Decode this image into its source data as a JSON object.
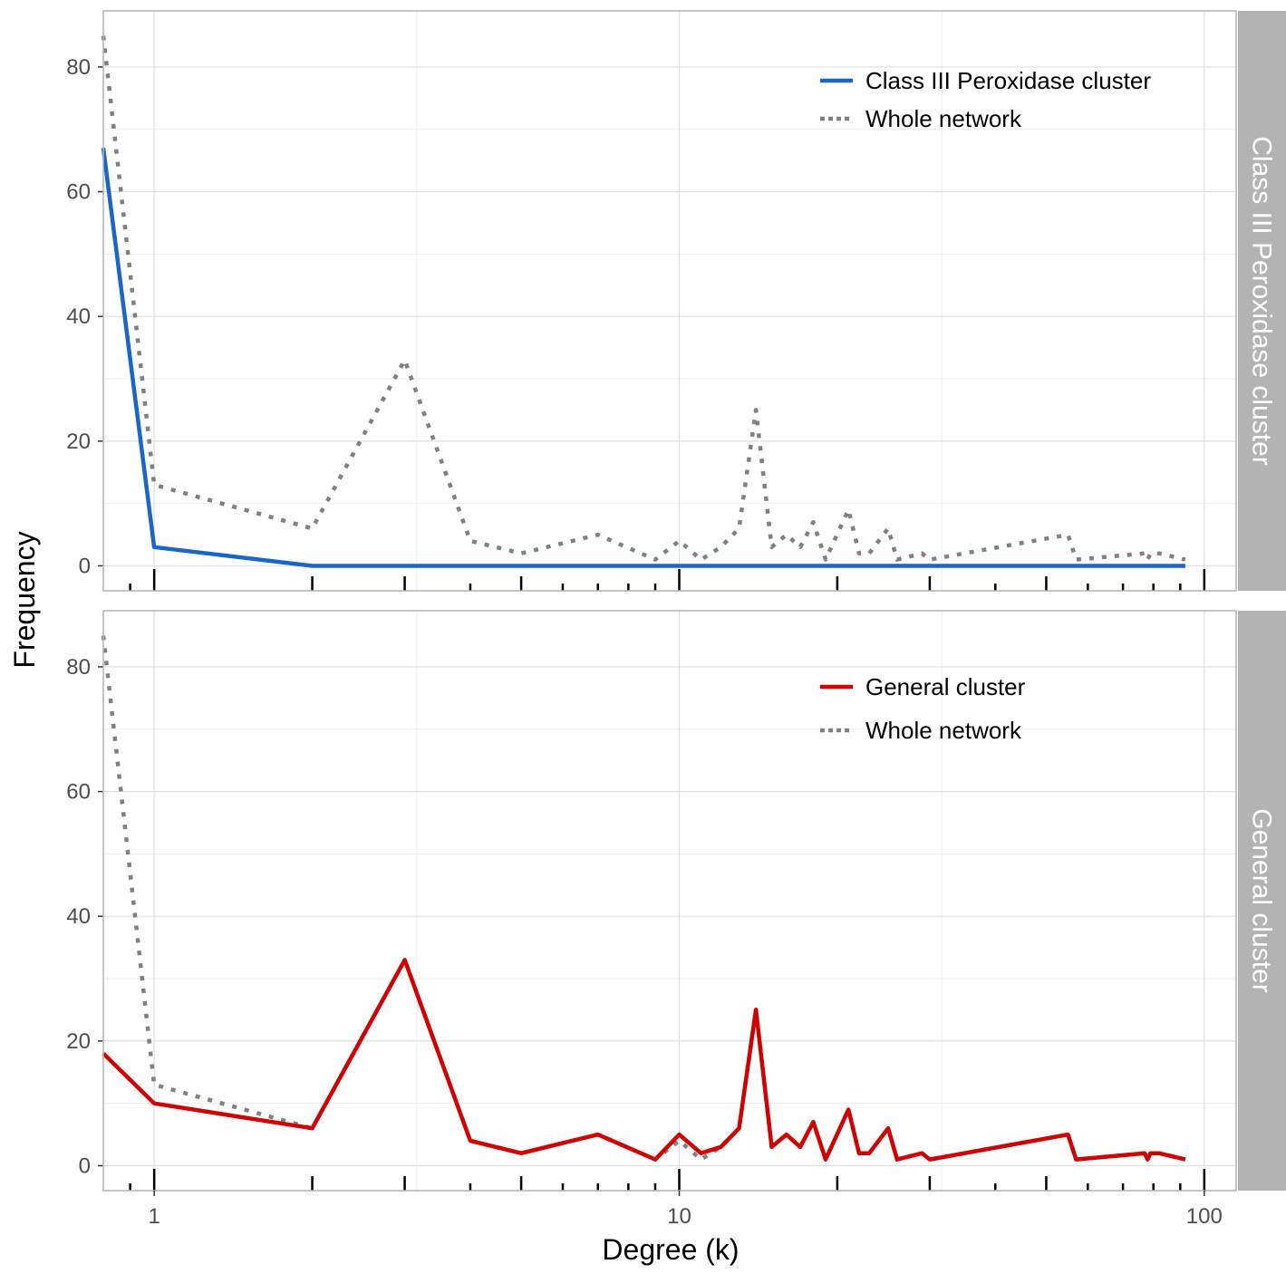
{
  "chart_data": {
    "type": "line",
    "xlabel": "Degree (k)",
    "ylabel": "Frequency",
    "x_scale": "log10",
    "xlim": [
      0.8,
      115
    ],
    "x_ticks": [
      1,
      10,
      100
    ],
    "x_tick_labels": [
      "1",
      "10",
      "100"
    ],
    "ylim": [
      -4,
      89
    ],
    "y_ticks": [
      0,
      20,
      40,
      60,
      80
    ],
    "y_tick_labels": [
      "0",
      "20",
      "40",
      "60",
      "80"
    ],
    "grid": true,
    "legend_position": "top-right",
    "panels": [
      {
        "strip_label": "Class III Peroxidase cluster",
        "series": [
          {
            "name": "Class III Peroxidase cluster",
            "color": "#1a66c6",
            "style": "solid",
            "points": [
              [
                0.8,
                67
              ],
              [
                1,
                3
              ],
              [
                2,
                0
              ],
              [
                92,
                0
              ]
            ]
          },
          {
            "name": "Whole network",
            "color": "#808080",
            "style": "dotted",
            "points": [
              [
                0.8,
                85
              ],
              [
                1,
                13
              ],
              [
                2,
                6
              ],
              [
                3,
                33
              ],
              [
                4,
                4
              ],
              [
                5,
                2
              ],
              [
                7,
                5
              ],
              [
                9,
                1
              ],
              [
                10,
                4
              ],
              [
                11,
                1
              ],
              [
                12,
                3
              ],
              [
                13,
                6
              ],
              [
                14,
                25
              ],
              [
                15,
                3
              ],
              [
                16,
                5
              ],
              [
                17,
                3
              ],
              [
                18,
                7
              ],
              [
                19,
                1
              ],
              [
                21,
                9
              ],
              [
                22,
                2
              ],
              [
                23,
                2
              ],
              [
                25,
                6
              ],
              [
                26,
                1
              ],
              [
                29,
                2
              ],
              [
                30,
                1
              ],
              [
                55,
                5
              ],
              [
                57,
                1
              ],
              [
                77,
                2
              ],
              [
                78,
                1
              ],
              [
                79,
                2
              ],
              [
                82,
                2
              ],
              [
                92,
                1
              ]
            ]
          }
        ]
      },
      {
        "strip_label": "General cluster",
        "series": [
          {
            "name": "General cluster",
            "color": "#d10000",
            "style": "solid",
            "points": [
              [
                0.8,
                18
              ],
              [
                1,
                10
              ],
              [
                2,
                6
              ],
              [
                3,
                33
              ],
              [
                4,
                4
              ],
              [
                5,
                2
              ],
              [
                7,
                5
              ],
              [
                9,
                1
              ],
              [
                10,
                5
              ],
              [
                11,
                2
              ],
              [
                12,
                3
              ],
              [
                13,
                6
              ],
              [
                14,
                25
              ],
              [
                15,
                3
              ],
              [
                16,
                5
              ],
              [
                17,
                3
              ],
              [
                18,
                7
              ],
              [
                19,
                1
              ],
              [
                21,
                9
              ],
              [
                22,
                2
              ],
              [
                23,
                2
              ],
              [
                25,
                6
              ],
              [
                26,
                1
              ],
              [
                29,
                2
              ],
              [
                30,
                1
              ],
              [
                55,
                5
              ],
              [
                57,
                1
              ],
              [
                77,
                2
              ],
              [
                78,
                1
              ],
              [
                79,
                2
              ],
              [
                82,
                2
              ],
              [
                92,
                1
              ]
            ]
          },
          {
            "name": "Whole network",
            "color": "#808080",
            "style": "dotted",
            "points": [
              [
                0.8,
                85
              ],
              [
                1,
                13
              ],
              [
                2,
                6
              ],
              [
                3,
                33
              ],
              [
                4,
                4
              ],
              [
                5,
                2
              ],
              [
                7,
                5
              ],
              [
                9,
                1
              ],
              [
                10,
                4
              ],
              [
                11,
                1
              ],
              [
                12,
                3
              ],
              [
                13,
                6
              ],
              [
                14,
                25
              ],
              [
                15,
                3
              ],
              [
                16,
                5
              ],
              [
                17,
                3
              ],
              [
                18,
                7
              ],
              [
                19,
                1
              ],
              [
                21,
                9
              ],
              [
                22,
                2
              ],
              [
                23,
                2
              ],
              [
                25,
                6
              ],
              [
                26,
                1
              ],
              [
                29,
                2
              ],
              [
                30,
                1
              ],
              [
                55,
                5
              ],
              [
                57,
                1
              ],
              [
                77,
                2
              ],
              [
                78,
                1
              ],
              [
                79,
                2
              ],
              [
                82,
                2
              ],
              [
                92,
                1
              ]
            ]
          }
        ]
      }
    ]
  }
}
